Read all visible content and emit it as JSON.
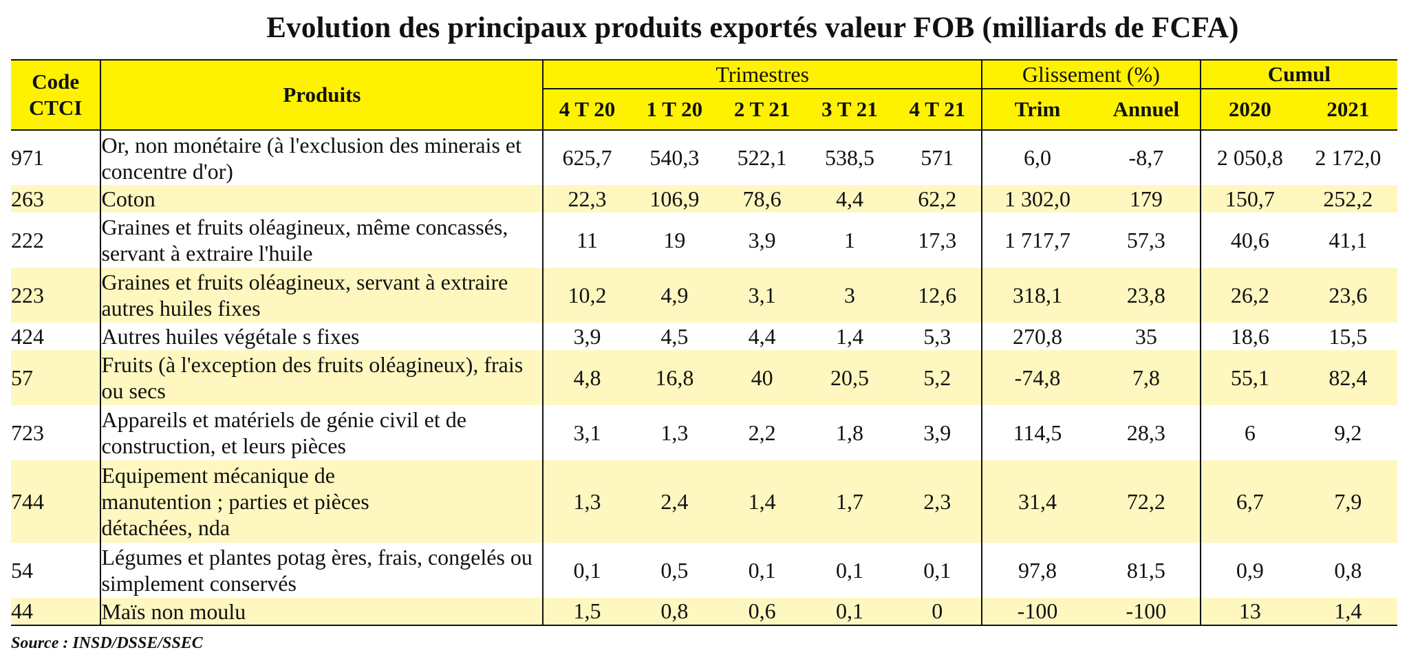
{
  "title": "Evolution des principaux produits exportés valeur FOB (milliards de FCFA)",
  "headers": {
    "code": "Code CTCI",
    "produits": "Produits",
    "trimestres": "Trimestres",
    "glissement": "Glissement (%)",
    "cumul": "Cumul",
    "sub": [
      "4 T 20",
      "1 T 20",
      "2 T 21",
      "3 T 21",
      "4 T 21",
      "Trim",
      "Annuel",
      "2020",
      "2021"
    ]
  },
  "rows": [
    {
      "code": "971",
      "produit": "Or, non monétaire (à l'exclusion des minerais et concentre d'or)",
      "values": [
        "625,7",
        "540,3",
        "522,1",
        "538,5",
        "571",
        "6,0",
        "-8,7",
        "2 050,8",
        "2 172,0"
      ]
    },
    {
      "code": "263",
      "produit": "Coton",
      "values": [
        "22,3",
        "106,9",
        "78,6",
        "4,4",
        "62,2",
        "1 302,0",
        "179",
        "150,7",
        "252,2"
      ]
    },
    {
      "code": "222",
      "produit": "Graines et fruits oléagineux, même concassés, servant à extraire l'huile",
      "values": [
        "11",
        "19",
        "3,9",
        "1",
        "17,3",
        "1 717,7",
        "57,3",
        "40,6",
        "41,1"
      ]
    },
    {
      "code": "223",
      "produit": "Graines et fruits oléagineux, servant à extraire autres huiles fixes",
      "values": [
        "10,2",
        "4,9",
        "3,1",
        "3",
        "12,6",
        "318,1",
        "23,8",
        "26,2",
        "23,6"
      ]
    },
    {
      "code": "424",
      "produit": "Autres huiles végétale s fixes",
      "values": [
        "3,9",
        "4,5",
        "4,4",
        "1,4",
        "5,3",
        "270,8",
        "35",
        "18,6",
        "15,5"
      ]
    },
    {
      "code": "57",
      "produit": "Fruits (à l'exception des fruits oléagineux), frais ou secs",
      "values": [
        "4,8",
        "16,8",
        "40",
        "20,5",
        "5,2",
        "-74,8",
        "7,8",
        "55,1",
        "82,4"
      ]
    },
    {
      "code": "723",
      "produit": "Appareils et matériels de génie civil et de construction, et leurs pièces",
      "values": [
        "3,1",
        "1,3",
        "2,2",
        "1,8",
        "3,9",
        "114,5",
        "28,3",
        "6",
        "9,2"
      ]
    },
    {
      "code": "744",
      "produit": "Equipement mécanique de manutention ; parties et pièces détachées, nda",
      "values": [
        "1,3",
        "2,4",
        "1,4",
        "1,7",
        "2,3",
        "31,4",
        "72,2",
        "6,7",
        "7,9"
      ]
    },
    {
      "code": "54",
      "produit": "Légumes et plantes potag ères, frais, congelés ou simplement conservés",
      "values": [
        "0,1",
        "0,5",
        "0,1",
        "0,1",
        "0,1",
        "97,8",
        "81,5",
        "0,9",
        "0,8"
      ]
    },
    {
      "code": "44",
      "produit": "Maïs non moulu",
      "values": [
        "1,5",
        "0,8",
        "0,6",
        "0,1",
        "0",
        "-100",
        "-100",
        "13",
        "1,4"
      ]
    }
  ],
  "source": "Source : INSD/DSSE/SSEC",
  "colors": {
    "header": "#fff200",
    "band": "#fff7c0"
  }
}
